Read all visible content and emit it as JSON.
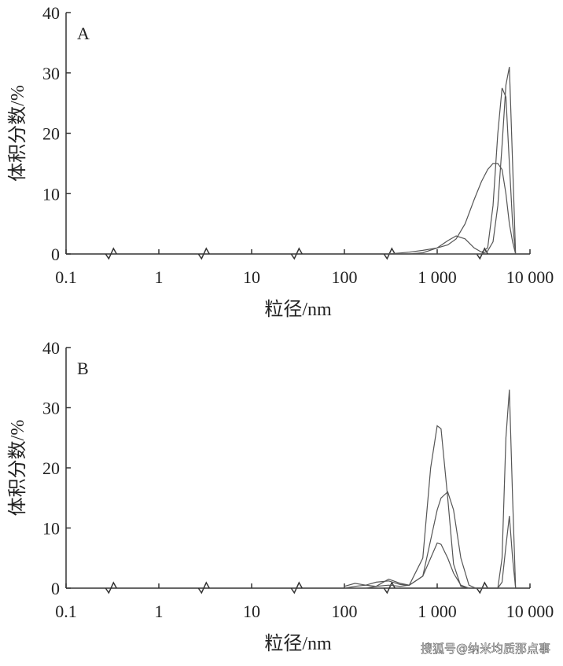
{
  "chart_data": [
    {
      "type": "line",
      "panel_label": "A",
      "x_label": "粒径/nm",
      "y_label": "体积分数/%",
      "log_x": true,
      "xlim": [
        0.1,
        10000
      ],
      "xticks": [
        0.1,
        1,
        10,
        100,
        {
          "value": 1000,
          "label": "1 000"
        },
        {
          "value": 10000,
          "label": "10 000"
        }
      ],
      "ylim": [
        0,
        40
      ],
      "yticks": [
        0,
        10,
        20,
        30,
        40
      ],
      "x": [
        300,
        500,
        700,
        1000,
        1300,
        1600,
        2000,
        2500,
        3000,
        3500,
        4000,
        4500,
        5000,
        5500,
        6000,
        6500,
        7000
      ],
      "series": [
        {
          "color": "#555",
          "values": [
            0,
            0.3,
            0.6,
            1,
            1.5,
            2.5,
            5,
            9,
            12,
            14,
            15,
            15,
            14,
            10,
            5,
            2,
            0
          ]
        },
        {
          "color": "#555",
          "values": [
            0,
            0,
            0.2,
            1,
            2.2,
            3,
            2.5,
            1,
            0.3,
            1,
            8,
            20,
            27.5,
            26,
            15,
            5,
            0
          ]
        },
        {
          "color": "#555",
          "values": [
            0,
            0,
            0,
            0,
            0,
            0,
            0,
            0,
            0,
            0.5,
            2,
            8,
            18,
            28,
            31,
            15,
            0
          ]
        }
      ]
    },
    {
      "type": "line",
      "panel_label": "B",
      "x_label": "粒径/nm",
      "y_label": "体积分数/%",
      "log_x": true,
      "xlim": [
        0.1,
        10000
      ],
      "xticks": [
        0.1,
        1,
        10,
        100,
        {
          "value": 1000,
          "label": "1 000"
        },
        {
          "value": 10000,
          "label": "10 000"
        }
      ],
      "ylim": [
        0,
        40
      ],
      "yticks": [
        0,
        10,
        20,
        30,
        40
      ],
      "x": [
        100,
        130,
        170,
        220,
        300,
        400,
        500,
        700,
        850,
        1000,
        1100,
        1300,
        1500,
        1800,
        2200,
        2600,
        3000,
        3500,
        4000,
        4500,
        5000,
        5500,
        6000,
        6500,
        7000
      ],
      "series": [
        {
          "color": "#555",
          "values": [
            0,
            0,
            0,
            0.3,
            0.5,
            0.3,
            0.5,
            5,
            20,
            27,
            26.5,
            15,
            4,
            0.3,
            0,
            0,
            0,
            0,
            0,
            0,
            5,
            25,
            33,
            15,
            0
          ]
        },
        {
          "color": "#555",
          "values": [
            0,
            0.3,
            0.5,
            1,
            1.2,
            0.6,
            0.5,
            2,
            8,
            13,
            15,
            16,
            13,
            5,
            0.5,
            0,
            0,
            0,
            0,
            0,
            1,
            7,
            12,
            5,
            0
          ]
        },
        {
          "color": "#555",
          "values": [
            0.3,
            0.8,
            0.5,
            0.3,
            1.5,
            0.8,
            0.5,
            2,
            5,
            7.5,
            7.3,
            5,
            2.5,
            0.5,
            0,
            0,
            0,
            0,
            0,
            0,
            0,
            0,
            0,
            0,
            0
          ]
        }
      ]
    }
  ],
  "watermark": "搜狐号@纳米均质那点事"
}
